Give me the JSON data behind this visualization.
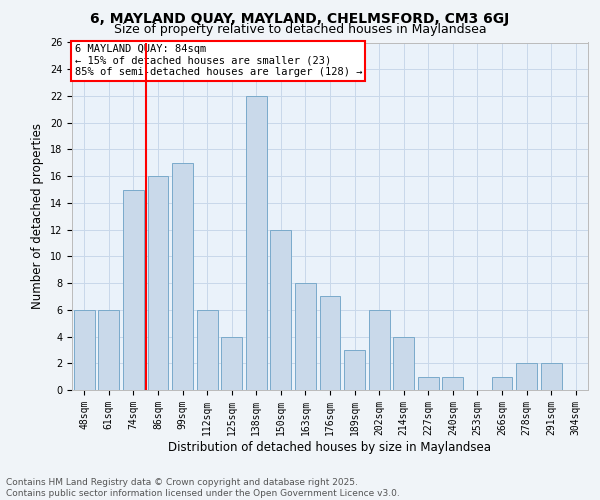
{
  "title_line1": "6, MAYLAND QUAY, MAYLAND, CHELMSFORD, CM3 6GJ",
  "title_line2": "Size of property relative to detached houses in Maylandsea",
  "xlabel": "Distribution of detached houses by size in Maylandsea",
  "ylabel": "Number of detached properties",
  "footer_line1": "Contains HM Land Registry data © Crown copyright and database right 2025.",
  "footer_line2": "Contains public sector information licensed under the Open Government Licence v3.0.",
  "categories": [
    "48sqm",
    "61sqm",
    "74sqm",
    "86sqm",
    "99sqm",
    "112sqm",
    "125sqm",
    "138sqm",
    "150sqm",
    "163sqm",
    "176sqm",
    "189sqm",
    "202sqm",
    "214sqm",
    "227sqm",
    "240sqm",
    "253sqm",
    "266sqm",
    "278sqm",
    "291sqm",
    "304sqm"
  ],
  "values": [
    6,
    6,
    15,
    16,
    17,
    6,
    4,
    22,
    12,
    8,
    7,
    3,
    6,
    4,
    1,
    1,
    0,
    1,
    2,
    2,
    0
  ],
  "bar_color": "#c9d9ea",
  "bar_edge_color": "#7aaacb",
  "annotation_text_line1": "6 MAYLAND QUAY: 84sqm",
  "annotation_text_line2": "← 15% of detached houses are smaller (23)",
  "annotation_text_line3": "85% of semi-detached houses are larger (128) →",
  "annotation_box_color": "white",
  "annotation_box_edge_color": "red",
  "subject_line_color": "red",
  "subject_line_index": 2.5,
  "ylim": [
    0,
    26
  ],
  "yticks": [
    0,
    2,
    4,
    6,
    8,
    10,
    12,
    14,
    16,
    18,
    20,
    22,
    24,
    26
  ],
  "grid_color": "#c8d8ea",
  "background_color": "#eaf2fa",
  "fig_background_color": "#f0f4f8",
  "bar_width": 0.85,
  "title_fontsize": 10,
  "subtitle_fontsize": 9,
  "axis_label_fontsize": 8.5,
  "tick_fontsize": 7,
  "footer_fontsize": 6.5,
  "annotation_fontsize": 7.5
}
